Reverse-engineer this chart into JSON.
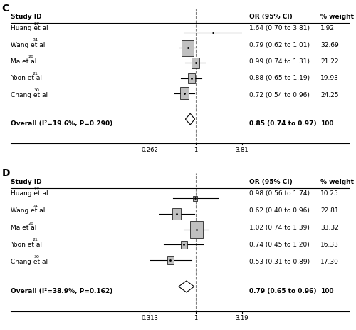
{
  "panel_C": {
    "label": "C",
    "studies": [
      {
        "name": "Huang et al",
        "sup": "27",
        "or": 1.64,
        "ci_low": 0.7,
        "ci_high": 3.81,
        "weight": 1.92,
        "or_str": "1.64 (0.70 to 3.81)",
        "wt_str": "1.92"
      },
      {
        "name": "Wang et al",
        "sup": "24",
        "or": 0.79,
        "ci_low": 0.62,
        "ci_high": 1.01,
        "weight": 32.69,
        "or_str": "0.79 (0.62 to 1.01)",
        "wt_str": "32.69"
      },
      {
        "name": "Ma et al",
        "sup": "26",
        "or": 0.99,
        "ci_low": 0.74,
        "ci_high": 1.31,
        "weight": 21.22,
        "or_str": "0.99 (0.74 to 1.31)",
        "wt_str": "21.22"
      },
      {
        "name": "Yoon et al",
        "sup": "21",
        "or": 0.88,
        "ci_low": 0.65,
        "ci_high": 1.19,
        "weight": 19.93,
        "or_str": "0.88 (0.65 to 1.19)",
        "wt_str": "19.93"
      },
      {
        "name": "Chang et al",
        "sup": "30",
        "or": 0.72,
        "ci_low": 0.54,
        "ci_high": 0.96,
        "weight": 24.25,
        "or_str": "0.72 (0.54 to 0.96)",
        "wt_str": "24.25"
      }
    ],
    "overall": {
      "or": 0.85,
      "ci_low": 0.74,
      "ci_high": 0.97,
      "or_str": "0.85 (0.74 to 0.97)",
      "wt_str": "100",
      "label": "Overall (I²=19.6%, P=0.290)"
    },
    "xmin": 0.262,
    "xmax": 3.81,
    "xticks": [
      0.262,
      1,
      3.81
    ],
    "xline": 1.0
  },
  "panel_D": {
    "label": "D",
    "studies": [
      {
        "name": "Huang et al",
        "sup": "27",
        "or": 0.98,
        "ci_low": 0.56,
        "ci_high": 1.74,
        "weight": 10.25,
        "or_str": "0.98 (0.56 to 1.74)",
        "wt_str": "10.25"
      },
      {
        "name": "Wang et al",
        "sup": "24",
        "or": 0.62,
        "ci_low": 0.4,
        "ci_high": 0.96,
        "weight": 22.81,
        "or_str": "0.62 (0.40 to 0.96)",
        "wt_str": "22.81"
      },
      {
        "name": "Ma et al",
        "sup": "26",
        "or": 1.02,
        "ci_low": 0.74,
        "ci_high": 1.39,
        "weight": 33.32,
        "or_str": "1.02 (0.74 to 1.39)",
        "wt_str": "33.32"
      },
      {
        "name": "Yoon et al",
        "sup": "21",
        "or": 0.74,
        "ci_low": 0.45,
        "ci_high": 1.2,
        "weight": 16.33,
        "or_str": "0.74 (0.45 to 1.20)",
        "wt_str": "16.33"
      },
      {
        "name": "Chang et al",
        "sup": "30",
        "or": 0.53,
        "ci_low": 0.31,
        "ci_high": 0.89,
        "weight": 17.3,
        "or_str": "0.53 (0.31 to 0.89)",
        "wt_str": "17.30"
      }
    ],
    "overall": {
      "or": 0.79,
      "ci_low": 0.65,
      "ci_high": 0.96,
      "or_str": "0.79 (0.65 to 0.96)",
      "wt_str": "100",
      "label": "Overall (I²=38.9%, P=0.162)"
    },
    "xmin": 0.313,
    "xmax": 3.19,
    "xticks": [
      0.313,
      1,
      3.19
    ],
    "xline": 1.0
  },
  "max_weight": 35
}
